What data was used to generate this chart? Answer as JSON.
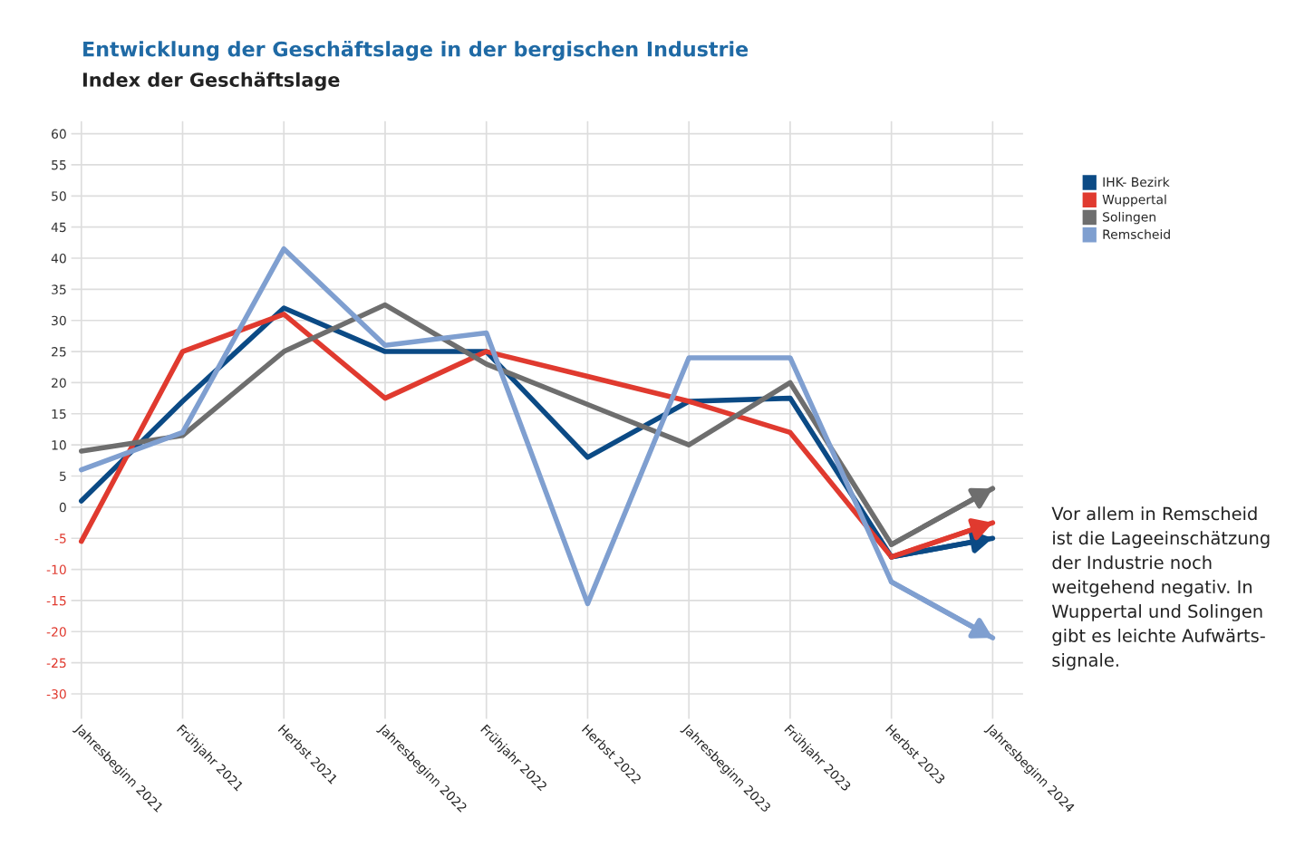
{
  "chart_data": {
    "type": "line",
    "title": "Entwicklung der Geschäftslage in der bergischen Industrie",
    "subtitle": "Index der Geschäftslage",
    "categories": [
      "Jahresbeginn 2021",
      "Frühjahr 2021",
      "Herbst 2021",
      "Jahresbeginn 2022",
      "Frühjahr 2022",
      "Herbst 2022",
      "Jahresbeginn 2023",
      "Frühjahr 2023",
      "Herbst 2023",
      "Jahresbeginn 2024"
    ],
    "series": [
      {
        "name": "IHK- Bezirk",
        "color": "#0b4a85",
        "values": [
          1,
          17,
          32,
          25,
          25,
          8,
          17,
          17.5,
          -8,
          -5
        ]
      },
      {
        "name": "Wuppertal",
        "color": "#e03a2f",
        "values": [
          -5.5,
          25,
          31,
          17.5,
          25,
          21,
          17,
          12,
          -8,
          -2.5
        ]
      },
      {
        "name": "Solingen",
        "color": "#6e6e6e",
        "values": [
          9,
          11.5,
          25,
          32.5,
          23,
          16.5,
          10,
          20,
          -6,
          3
        ]
      },
      {
        "name": "Remscheid",
        "color": "#7f9fd0",
        "values": [
          6,
          12,
          41.5,
          26,
          28,
          -15.5,
          24,
          24,
          -12,
          -21
        ]
      }
    ],
    "ylim": [
      -34,
      62
    ],
    "yticks": [
      -30,
      -25,
      -20,
      -15,
      -10,
      -5,
      0,
      5,
      10,
      15,
      20,
      25,
      30,
      35,
      40,
      45,
      50,
      55,
      60
    ],
    "grid": true,
    "legend": "top right",
    "annotations": [
      "Vor allem in Remscheid\nist die Lageeinschätzung\nder Industrie noch\nweitgehend negativ. In\nWuppertal und Solingen\ngibt es leichte Aufwärts-\nsignale."
    ]
  }
}
